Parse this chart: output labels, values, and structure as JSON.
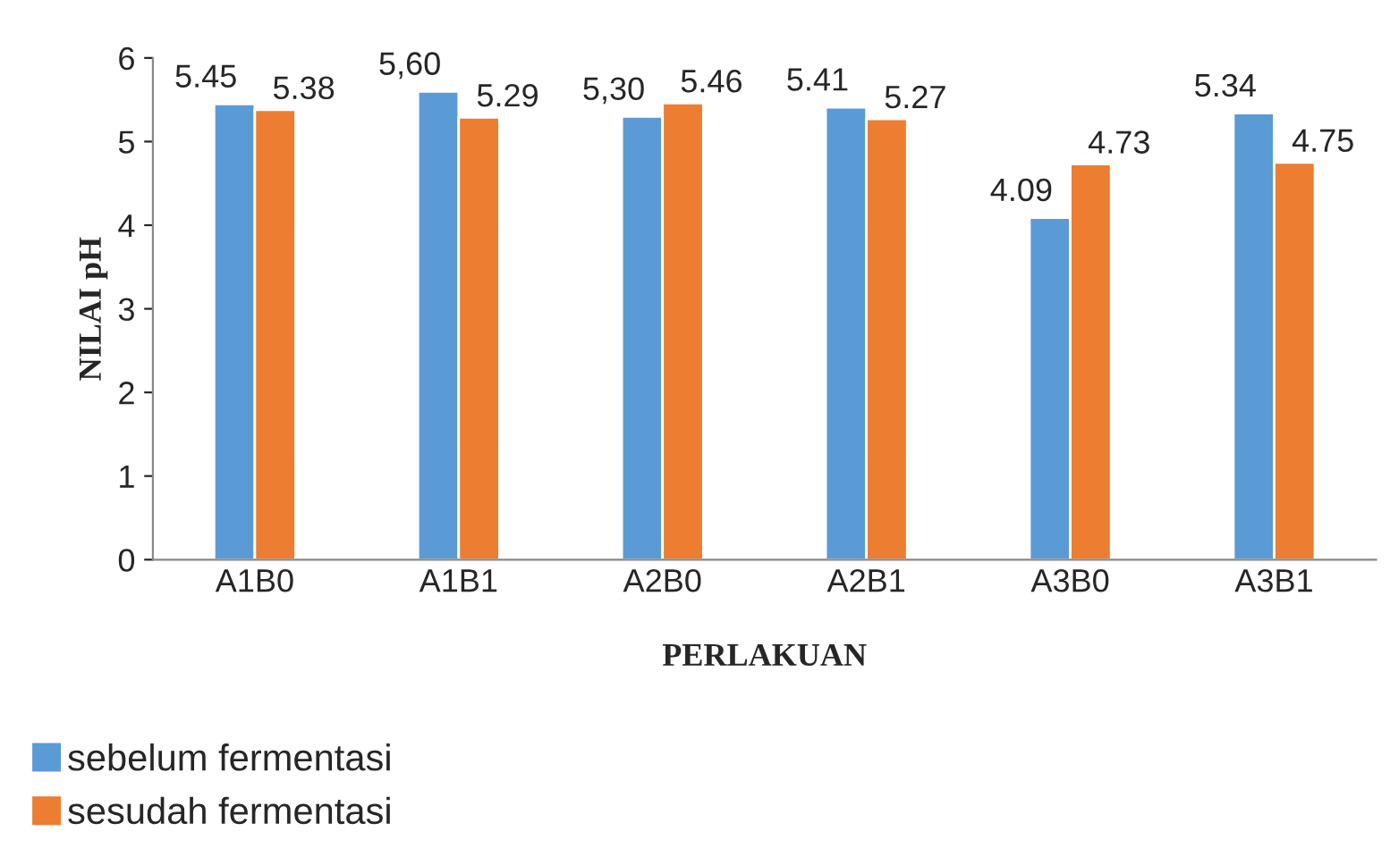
{
  "chart_data": {
    "type": "bar",
    "xlabel": "PERLAKUAN",
    "ylabel": "NILAI pH",
    "categories": [
      "A1B0",
      "A1B1",
      "A2B0",
      "A2B1",
      "A3B0",
      "A3B1"
    ],
    "series": [
      {
        "name": "sebelum fermentasi",
        "color": "#5b9bd5",
        "values": [
          5.45,
          5.6,
          5.3,
          5.41,
          4.09,
          5.34
        ],
        "value_labels": [
          "5.45",
          "5,60",
          "5,30",
          "5.41",
          "4.09",
          "5.34"
        ]
      },
      {
        "name": "sesudah fermentasi",
        "color": "#ed7d31",
        "values": [
          5.38,
          5.29,
          5.46,
          5.27,
          4.73,
          4.75
        ],
        "value_labels": [
          "5.38",
          "5.29",
          "5.46",
          "5.27",
          "4.73",
          "4.75"
        ]
      }
    ],
    "ylim": [
      0,
      6
    ],
    "yticks": [
      0,
      1,
      2,
      3,
      4,
      5,
      6
    ],
    "grid": false,
    "legend": "bottom left"
  }
}
